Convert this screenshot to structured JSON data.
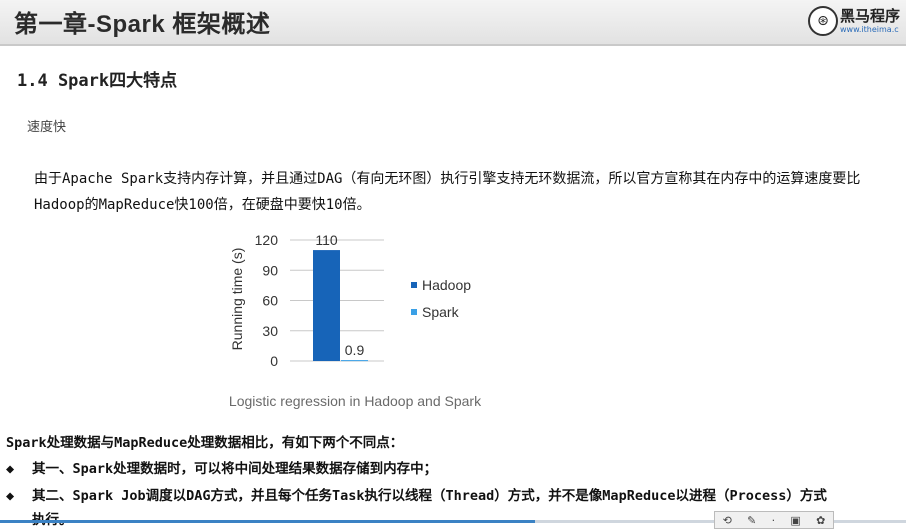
{
  "header": {
    "title": "第一章-Spark 框架概述",
    "logo_mark": "⊛",
    "logo_name": "黑马程序",
    "logo_url": "www.itheima.c"
  },
  "section_title": "1.4 Spark四大特点",
  "feature_label": "速度快",
  "paragraph": {
    "line1": "由于Apache Spark支持内存计算，并且通过DAG（有向无环图）执行引擎支持无环数据流，所以官方宣称其在内存中的运算速度要比",
    "line2": "Hadoop的MapReduce快100倍，在硬盘中要快10倍。"
  },
  "chart_data": {
    "type": "bar",
    "title": "Logistic regression in Hadoop and Spark",
    "ylabel": "Running time (s)",
    "xlabel": "",
    "ylim": [
      0,
      120
    ],
    "yticks": [
      0,
      30,
      60,
      90,
      120
    ],
    "grid": "horizontal",
    "legend_placement": "right",
    "series": [
      {
        "name": "Hadoop",
        "value": 110,
        "label": "110",
        "color": "#1764b8"
      },
      {
        "name": "Spark",
        "value": 0.9,
        "label": "0.9",
        "color": "#3aa0e6"
      }
    ]
  },
  "comparison_intro": "Spark处理数据与MapReduce处理数据相比，有如下两个不同点：",
  "bullets": [
    {
      "symbol": "◆",
      "text": "其一、Spark处理数据时，可以将中间处理结果数据存储到内存中；"
    },
    {
      "symbol": "◆",
      "text": "其二、Spark Job调度以DAG方式，并且每个任务Task执行以线程（Thread）方式，并不是像MapReduce以进程（Process）方式"
    },
    {
      "symbol": "",
      "text": "执行。"
    }
  ],
  "video": {
    "progress_fraction": 0.59
  },
  "colors": {
    "accent": "#1764b8",
    "secondary": "#3aa0e6"
  }
}
